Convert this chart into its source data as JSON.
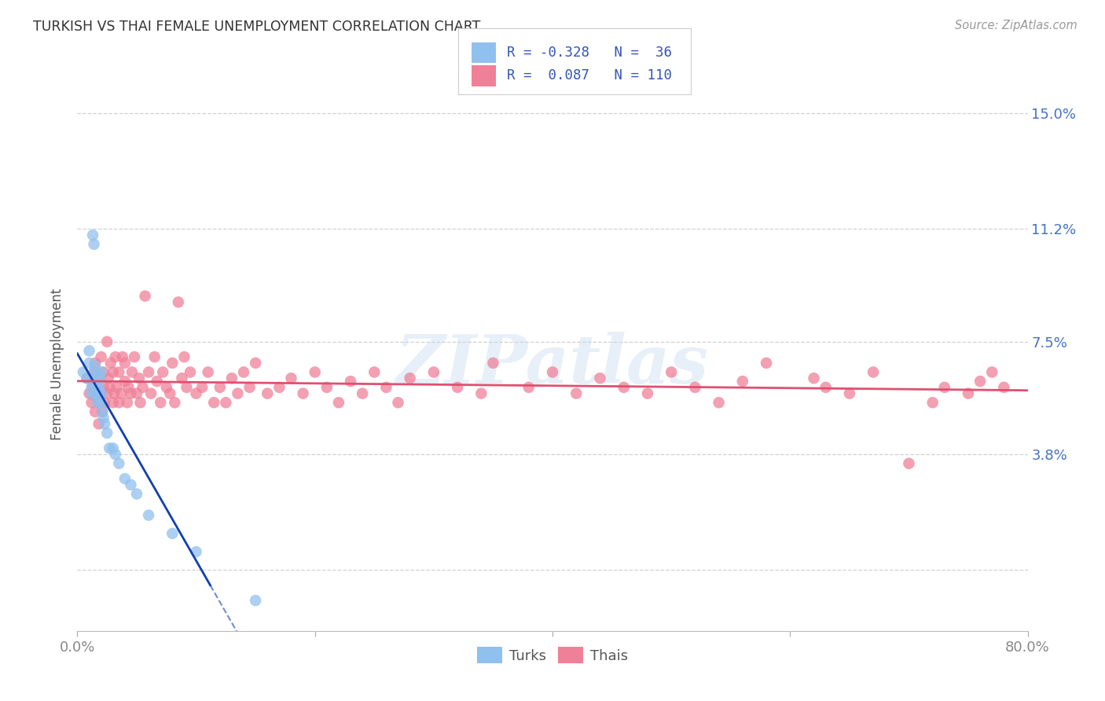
{
  "title": "TURKISH VS THAI FEMALE UNEMPLOYMENT CORRELATION CHART",
  "source": "Source: ZipAtlas.com",
  "ylabel": "Female Unemployment",
  "watermark": "ZIPatlas",
  "xlim": [
    0.0,
    0.8
  ],
  "ylim": [
    -0.02,
    0.155
  ],
  "ytick_positions": [
    0.0,
    0.038,
    0.075,
    0.112,
    0.15
  ],
  "ytick_labels": [
    "",
    "3.8%",
    "7.5%",
    "11.2%",
    "15.0%"
  ],
  "turks_color": "#90C0EE",
  "thais_color": "#F08098",
  "turks_line_color": "#1040B0",
  "thais_line_color": "#E05070",
  "turks_x": [
    0.005,
    0.008,
    0.01,
    0.01,
    0.012,
    0.012,
    0.013,
    0.013,
    0.014,
    0.015,
    0.015,
    0.015,
    0.016,
    0.016,
    0.017,
    0.018,
    0.018,
    0.019,
    0.02,
    0.02,
    0.02,
    0.021,
    0.022,
    0.023,
    0.025,
    0.027,
    0.03,
    0.032,
    0.035,
    0.04,
    0.045,
    0.05,
    0.06,
    0.08,
    0.1,
    0.15
  ],
  "turks_y": [
    0.065,
    0.063,
    0.068,
    0.072,
    0.058,
    0.06,
    0.062,
    0.11,
    0.107,
    0.063,
    0.065,
    0.067,
    0.06,
    0.058,
    0.055,
    0.057,
    0.06,
    0.063,
    0.058,
    0.055,
    0.065,
    0.052,
    0.05,
    0.048,
    0.045,
    0.04,
    0.04,
    0.038,
    0.035,
    0.03,
    0.028,
    0.025,
    0.018,
    0.012,
    0.006,
    -0.01
  ],
  "thais_x": [
    0.008,
    0.01,
    0.012,
    0.013,
    0.014,
    0.015,
    0.015,
    0.016,
    0.017,
    0.018,
    0.018,
    0.019,
    0.02,
    0.02,
    0.021,
    0.022,
    0.022,
    0.023,
    0.025,
    0.025,
    0.026,
    0.027,
    0.028,
    0.03,
    0.03,
    0.031,
    0.032,
    0.033,
    0.035,
    0.035,
    0.037,
    0.038,
    0.04,
    0.04,
    0.042,
    0.043,
    0.045,
    0.046,
    0.048,
    0.05,
    0.052,
    0.053,
    0.055,
    0.057,
    0.06,
    0.062,
    0.065,
    0.067,
    0.07,
    0.072,
    0.075,
    0.078,
    0.08,
    0.082,
    0.085,
    0.088,
    0.09,
    0.092,
    0.095,
    0.1,
    0.105,
    0.11,
    0.115,
    0.12,
    0.125,
    0.13,
    0.135,
    0.14,
    0.145,
    0.15,
    0.16,
    0.17,
    0.18,
    0.19,
    0.2,
    0.21,
    0.22,
    0.23,
    0.24,
    0.25,
    0.26,
    0.27,
    0.28,
    0.3,
    0.32,
    0.34,
    0.35,
    0.38,
    0.4,
    0.42,
    0.44,
    0.46,
    0.48,
    0.5,
    0.52,
    0.54,
    0.56,
    0.58,
    0.62,
    0.63,
    0.65,
    0.67,
    0.7,
    0.72,
    0.73,
    0.75,
    0.76,
    0.77,
    0.78
  ],
  "thais_y": [
    0.063,
    0.058,
    0.055,
    0.06,
    0.065,
    0.068,
    0.052,
    0.057,
    0.06,
    0.063,
    0.048,
    0.055,
    0.07,
    0.058,
    0.052,
    0.065,
    0.06,
    0.055,
    0.075,
    0.058,
    0.063,
    0.06,
    0.068,
    0.055,
    0.065,
    0.058,
    0.07,
    0.06,
    0.055,
    0.065,
    0.058,
    0.07,
    0.062,
    0.068,
    0.055,
    0.06,
    0.058,
    0.065,
    0.07,
    0.058,
    0.063,
    0.055,
    0.06,
    0.09,
    0.065,
    0.058,
    0.07,
    0.062,
    0.055,
    0.065,
    0.06,
    0.058,
    0.068,
    0.055,
    0.088,
    0.063,
    0.07,
    0.06,
    0.065,
    0.058,
    0.06,
    0.065,
    0.055,
    0.06,
    0.055,
    0.063,
    0.058,
    0.065,
    0.06,
    0.068,
    0.058,
    0.06,
    0.063,
    0.058,
    0.065,
    0.06,
    0.055,
    0.062,
    0.058,
    0.065,
    0.06,
    0.055,
    0.063,
    0.065,
    0.06,
    0.058,
    0.068,
    0.06,
    0.065,
    0.058,
    0.063,
    0.06,
    0.058,
    0.065,
    0.06,
    0.055,
    0.062,
    0.068,
    0.063,
    0.06,
    0.058,
    0.065,
    0.035,
    0.055,
    0.06,
    0.058,
    0.062,
    0.065,
    0.06
  ]
}
